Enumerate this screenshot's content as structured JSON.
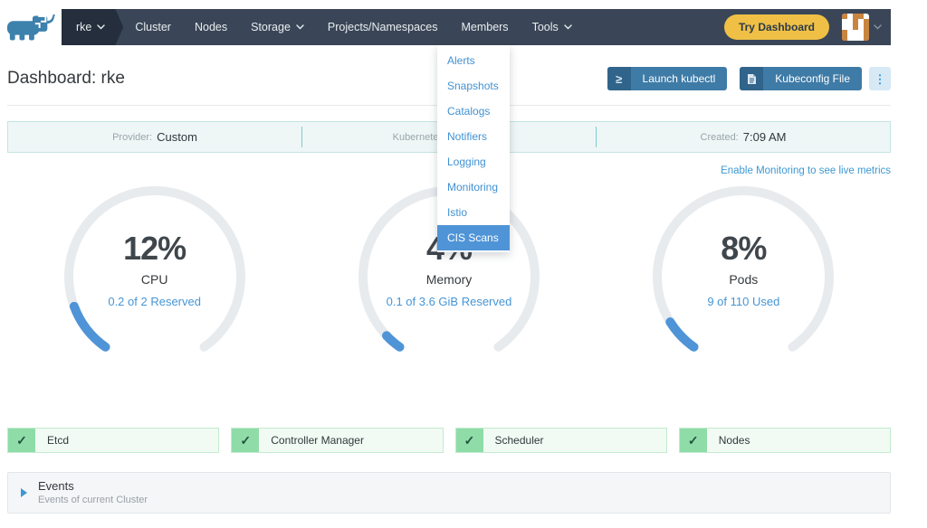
{
  "navbar": {
    "cluster": {
      "label": "rke"
    },
    "items": [
      {
        "label": "Cluster",
        "dropdown": false
      },
      {
        "label": "Nodes",
        "dropdown": false
      },
      {
        "label": "Storage",
        "dropdown": true
      },
      {
        "label": "Projects/Namespaces",
        "dropdown": false
      },
      {
        "label": "Members",
        "dropdown": false
      },
      {
        "label": "Tools",
        "dropdown": true
      }
    ],
    "try_dashboard_label": "Try Dashboard"
  },
  "tools_menu": {
    "items": [
      {
        "label": "Alerts",
        "active": false
      },
      {
        "label": "Snapshots",
        "active": false
      },
      {
        "label": "Catalogs",
        "active": false
      },
      {
        "label": "Notifiers",
        "active": false
      },
      {
        "label": "Logging",
        "active": false
      },
      {
        "label": "Monitoring",
        "active": false
      },
      {
        "label": "Istio",
        "active": false
      },
      {
        "label": "CIS Scans",
        "active": true
      }
    ]
  },
  "page": {
    "title": "Dashboard: rke",
    "actions": {
      "launch_kubectl": "Launch kubectl",
      "kubeconfig_file": "Kubeconfig File",
      "more_icon": "⋮",
      "kubectl_icon": "≥"
    }
  },
  "info_bar": {
    "provider": {
      "label": "Provider:",
      "value": "Custom"
    },
    "kubernetes": {
      "visible_fragment": "Kubernete"
    },
    "created": {
      "label": "Created:",
      "value": "7:09 AM"
    }
  },
  "monitoring_link": "Enable Monitoring to see live metrics",
  "chart_data": {
    "type": "gauge",
    "gauges": [
      {
        "percent": 12,
        "percent_label": "12%",
        "label": "CPU",
        "detail": "0.2 of 2 Reserved"
      },
      {
        "percent": 4,
        "percent_label": "4%",
        "label": "Memory",
        "detail": "0.1 of 3.6 GiB Reserved"
      },
      {
        "percent": 8,
        "percent_label": "8%",
        "label": "Pods",
        "detail": "9 of 110 Used"
      }
    ]
  },
  "status_boxes": [
    {
      "label": "Etcd"
    },
    {
      "label": "Controller Manager"
    },
    {
      "label": "Scheduler"
    },
    {
      "label": "Nodes"
    }
  ],
  "events": {
    "title": "Events",
    "subtitle": "Events of current Cluster"
  },
  "colors": {
    "navbar_bg": "#3a4657",
    "navbar_active_bg": "#242e3c",
    "accent_blue": "#3d98d3",
    "menu_active_bg": "#4f94d7",
    "button_blue": "#3e7ba7",
    "button_blue_dark": "#30648b",
    "try_dashboard_yellow": "#efc045",
    "gauge_blue": "#4f94d7",
    "gauge_track": "#e7ebee",
    "status_green": "#8fdca8",
    "status_box_bg": "#f1fbf4",
    "info_bar_bg": "#eef7f6",
    "avatar_orange": "#c98440"
  }
}
